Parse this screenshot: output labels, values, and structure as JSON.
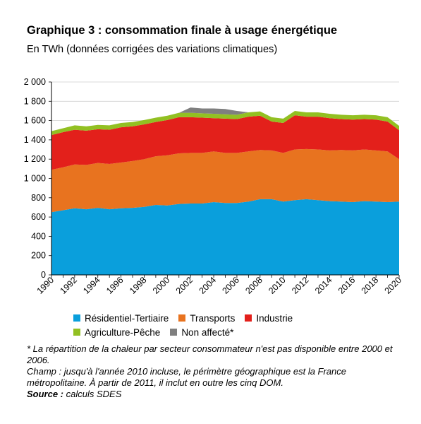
{
  "title": "Graphique 3 : consommation finale à usage énergétique",
  "subtitle": "En TWh (données corrigées des variations climatiques)",
  "chart_data": {
    "type": "area",
    "stacked": true,
    "x": [
      1990,
      1991,
      1992,
      1993,
      1994,
      1995,
      1996,
      1997,
      1998,
      1999,
      2000,
      2001,
      2002,
      2003,
      2004,
      2005,
      2006,
      2007,
      2008,
      2009,
      2010,
      2011,
      2012,
      2013,
      2014,
      2015,
      2016,
      2017,
      2018,
      2019,
      2020
    ],
    "x_tick_labels": [
      "1990",
      "1992",
      "1994",
      "1996",
      "1998",
      "2000",
      "2002",
      "2004",
      "2006",
      "2008",
      "2010",
      "2012",
      "2014",
      "2016",
      "2018",
      "2020"
    ],
    "ylim": [
      0,
      2000
    ],
    "y_tick_labels": [
      "0",
      "200",
      "400",
      "600",
      "800",
      "1 000",
      "1 200",
      "1 400",
      "1 600",
      "1 800",
      "2 000"
    ],
    "grid": "horizontal",
    "series": [
      {
        "name": "Résidentiel-Tertiaire",
        "color": "#0a9fdc",
        "values": [
          650,
          670,
          690,
          680,
          695,
          680,
          690,
          695,
          705,
          725,
          720,
          735,
          740,
          740,
          755,
          745,
          745,
          760,
          785,
          785,
          760,
          775,
          785,
          775,
          765,
          760,
          755,
          765,
          760,
          755,
          760
        ]
      },
      {
        "name": "Transports",
        "color": "#e8731f",
        "values": [
          440,
          445,
          455,
          460,
          465,
          470,
          475,
          485,
          495,
          505,
          520,
          525,
          525,
          525,
          525,
          520,
          520,
          520,
          510,
          505,
          505,
          525,
          520,
          525,
          525,
          535,
          535,
          535,
          530,
          525,
          440
        ]
      },
      {
        "name": "Industrie",
        "color": "#e3201b",
        "values": [
          360,
          365,
          360,
          355,
          350,
          355,
          365,
          360,
          360,
          355,
          365,
          375,
          370,
          365,
          345,
          355,
          350,
          360,
          355,
          300,
          310,
          355,
          335,
          340,
          335,
          320,
          320,
          315,
          320,
          310,
          300
        ]
      },
      {
        "name": "Agriculture-Pêche",
        "color": "#92c022",
        "values": [
          40,
          40,
          45,
          45,
          45,
          45,
          45,
          45,
          45,
          45,
          45,
          45,
          45,
          45,
          45,
          45,
          45,
          45,
          45,
          45,
          45,
          45,
          45,
          45,
          45,
          45,
          45,
          45,
          45,
          45,
          45
        ]
      },
      {
        "name": "Non affecté*",
        "color": "#7f7f7f",
        "values": [
          0,
          0,
          0,
          0,
          0,
          0,
          0,
          0,
          0,
          0,
          0,
          0,
          55,
          50,
          55,
          55,
          40,
          0,
          0,
          0,
          0,
          0,
          0,
          0,
          0,
          0,
          0,
          0,
          0,
          0,
          0
        ]
      }
    ]
  },
  "notes": {
    "line1": "* La répartition de la chaleur par secteur consommateur n'est pas disponible entre 2000 et 2006.",
    "line2": "Champ : jusqu'à l'année 2010 incluse, le périmètre géographique est la France métropolitaine. À partir de 2011, il inclut en outre les cinq DOM.",
    "source_label": "Source :",
    "source_text": " calculs SDES"
  }
}
